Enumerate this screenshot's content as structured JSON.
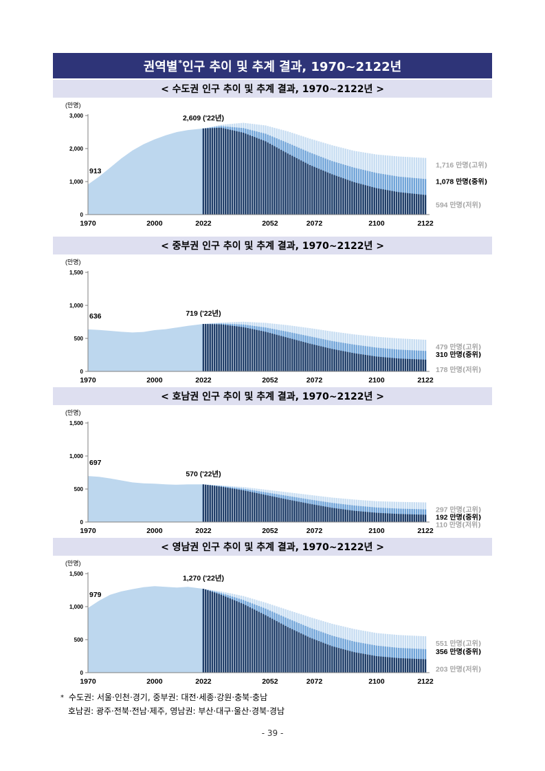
{
  "title": {
    "text": "권역별",
    "mark": "*",
    "rest": " 인구 추이 및 추계 결과, 1970~2122년"
  },
  "colors": {
    "header_bg": "#2e3478",
    "subheader_bg": "#dedff0",
    "historical": "#bdd7ee",
    "high": "#c7ddf2",
    "medium": "#6fa3d8",
    "low": "#1f3c66",
    "high_label": "#a6a6a6",
    "low_label": "#a6a6a6"
  },
  "chart_data": [
    {
      "type": "area",
      "title": "< 수도권 인구 추이 및 추계 결과, 1970~2122년 >",
      "ylabel": "(만명)",
      "ylim": [
        0,
        3000
      ],
      "yticks": [
        "0",
        "1,000",
        "2,000",
        "3,000"
      ],
      "yticks_values": [
        0,
        1000,
        2000,
        3000
      ],
      "xticks": [
        "1970",
        "2000",
        "2022",
        "2052",
        "2072",
        "2100",
        "2122"
      ],
      "xlim": [
        1970,
        2122
      ],
      "historical": {
        "x": [
          1970,
          1975,
          1980,
          1985,
          1990,
          1995,
          2000,
          2005,
          2010,
          2015,
          2022
        ],
        "y": [
          913,
          1150,
          1420,
          1700,
          1940,
          2130,
          2280,
          2400,
          2500,
          2560,
          2609
        ]
      },
      "projection": {
        "x": [
          2022,
          2030,
          2040,
          2050,
          2060,
          2070,
          2080,
          2090,
          2100,
          2110,
          2122
        ],
        "high": [
          2609,
          2720,
          2780,
          2700,
          2520,
          2300,
          2100,
          1930,
          1820,
          1760,
          1716
        ],
        "medium": [
          2609,
          2680,
          2620,
          2450,
          2170,
          1880,
          1620,
          1420,
          1260,
          1150,
          1078
        ],
        "low": [
          2609,
          2630,
          2480,
          2220,
          1850,
          1500,
          1220,
          980,
          800,
          680,
          594
        ]
      },
      "start_label": "913",
      "peak_label": "2,609 ('22년)",
      "end_labels": {
        "high": {
          "value": "1,716",
          "unit": "만명(고위)"
        },
        "medium": {
          "value": "1,078",
          "unit": "만명(중위)"
        },
        "low": {
          "value": "594",
          "unit": "만명(저위)"
        }
      }
    },
    {
      "type": "area",
      "title": "< 중부권 인구 추이 및 추계 결과, 1970~2122년 >",
      "ylabel": "(만명)",
      "ylim": [
        0,
        1500
      ],
      "yticks": [
        "0",
        "500",
        "1,000",
        "1,500"
      ],
      "yticks_values": [
        0,
        500,
        1000,
        1500
      ],
      "xticks": [
        "1970",
        "2000",
        "2022",
        "2052",
        "2072",
        "2100",
        "2122"
      ],
      "xlim": [
        1970,
        2122
      ],
      "historical": {
        "x": [
          1970,
          1975,
          1980,
          1985,
          1990,
          1995,
          2000,
          2005,
          2010,
          2015,
          2022
        ],
        "y": [
          636,
          628,
          615,
          600,
          590,
          598,
          625,
          640,
          665,
          690,
          719
        ]
      },
      "projection": {
        "x": [
          2022,
          2030,
          2040,
          2050,
          2060,
          2070,
          2080,
          2090,
          2100,
          2110,
          2122
        ],
        "high": [
          719,
          740,
          752,
          735,
          700,
          655,
          605,
          560,
          525,
          500,
          479
        ],
        "medium": [
          719,
          725,
          710,
          665,
          600,
          530,
          460,
          405,
          360,
          330,
          310
        ],
        "low": [
          719,
          712,
          670,
          600,
          510,
          420,
          340,
          275,
          225,
          195,
          178
        ]
      },
      "start_label": "636",
      "peak_label": "719 ('22년)",
      "end_labels": {
        "high": {
          "value": "479",
          "unit": "만명(고위)"
        },
        "medium": {
          "value": "310",
          "unit": "만명(중위)"
        },
        "low": {
          "value": "178",
          "unit": "만명(저위)"
        }
      }
    },
    {
      "type": "area",
      "title": "< 호남권 인구 추이 및 추계 결과, 1970~2122년 >",
      "ylabel": "(만명)",
      "ylim": [
        0,
        1500
      ],
      "yticks": [
        "0",
        "500",
        "1,000",
        "1,500"
      ],
      "yticks_values": [
        0,
        500,
        1000,
        1500
      ],
      "xticks": [
        "1970",
        "2000",
        "2022",
        "2052",
        "2072",
        "2100",
        "2122"
      ],
      "xlim": [
        1970,
        2122
      ],
      "historical": {
        "x": [
          1970,
          1975,
          1980,
          1985,
          1990,
          1995,
          2000,
          2005,
          2010,
          2015,
          2022
        ],
        "y": [
          697,
          685,
          660,
          630,
          600,
          585,
          580,
          570,
          565,
          570,
          570
        ]
      },
      "projection": {
        "x": [
          2022,
          2030,
          2040,
          2050,
          2060,
          2070,
          2080,
          2090,
          2100,
          2110,
          2122
        ],
        "high": [
          570,
          555,
          530,
          490,
          450,
          410,
          370,
          340,
          315,
          305,
          297
        ],
        "medium": [
          570,
          545,
          505,
          450,
          395,
          340,
          290,
          250,
          220,
          203,
          192
        ],
        "low": [
          570,
          535,
          480,
          410,
          340,
          275,
          215,
          170,
          140,
          122,
          110
        ]
      },
      "start_label": "697",
      "peak_label": "570 ('22년)",
      "end_labels": {
        "high": {
          "value": "297",
          "unit": "만명(고위)"
        },
        "medium": {
          "value": "192",
          "unit": "만명(중위)"
        },
        "low": {
          "value": "110",
          "unit": "만명(저위)"
        }
      }
    },
    {
      "type": "area",
      "title": "< 영남권 인구 추이 및 추계 결과, 1970~2122년 >",
      "ylabel": "(만명)",
      "ylim": [
        0,
        1500
      ],
      "yticks": [
        "0",
        "500",
        "1,000",
        "1,500"
      ],
      "yticks_values": [
        0,
        500,
        1000,
        1500
      ],
      "xticks": [
        "1970",
        "2000",
        "2022",
        "2052",
        "2072",
        "2100",
        "2122"
      ],
      "xlim": [
        1970,
        2122
      ],
      "historical": {
        "x": [
          1970,
          1975,
          1980,
          1985,
          1990,
          1995,
          2000,
          2005,
          2010,
          2015,
          2022
        ],
        "y": [
          979,
          1090,
          1180,
          1230,
          1265,
          1295,
          1310,
          1300,
          1290,
          1300,
          1270
        ]
      },
      "projection": {
        "x": [
          2022,
          2030,
          2040,
          2050,
          2060,
          2070,
          2080,
          2090,
          2100,
          2110,
          2122
        ],
        "high": [
          1270,
          1230,
          1160,
          1060,
          950,
          840,
          740,
          660,
          600,
          570,
          551
        ],
        "medium": [
          1270,
          1205,
          1100,
          970,
          820,
          680,
          560,
          470,
          410,
          375,
          356
        ],
        "low": [
          1270,
          1180,
          1040,
          870,
          690,
          530,
          400,
          310,
          250,
          220,
          203
        ]
      },
      "start_label": "979",
      "peak_label": "1,270 ('22년)",
      "end_labels": {
        "high": {
          "value": "551",
          "unit": "만명(고위)"
        },
        "medium": {
          "value": "356",
          "unit": "만명(중위)"
        },
        "low": {
          "value": "203",
          "unit": "만명(저위)"
        }
      }
    }
  ],
  "footnote": {
    "mark": "*",
    "line1": "수도권: 서울·인천·경기, 중부권: 대전·세종·강원·충북·충남",
    "line2": "호남권: 광주·전북·전남·제주, 영남권: 부산·대구·울산·경북·경남"
  },
  "page_number": "- 39 -"
}
